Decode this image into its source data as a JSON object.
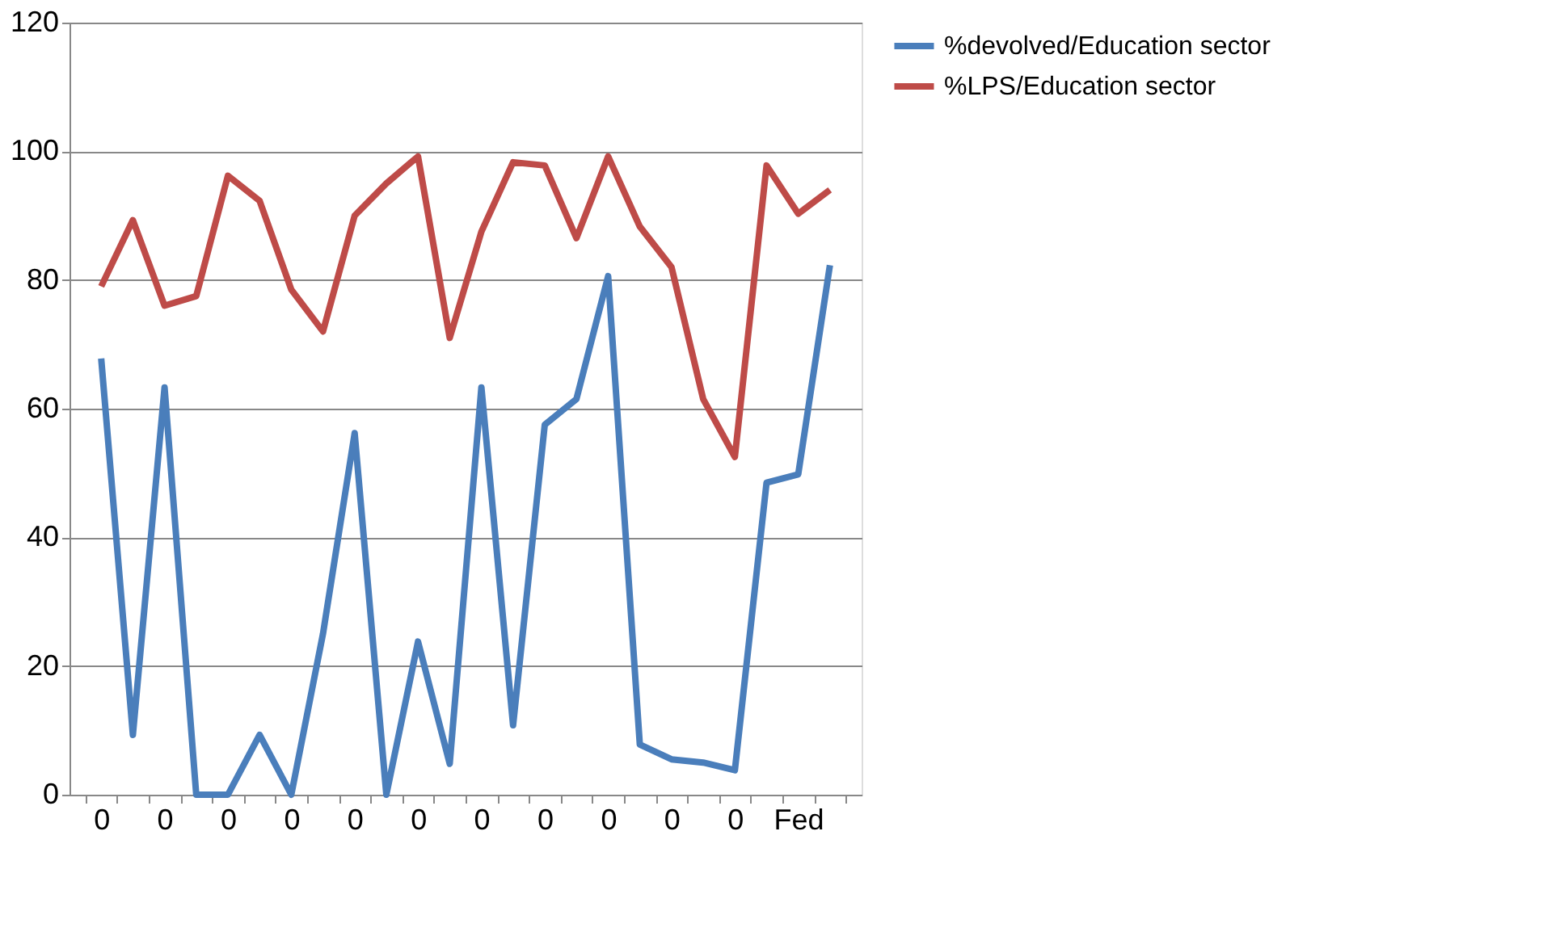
{
  "chart_data": {
    "type": "line",
    "categories": [
      "0",
      null,
      "0",
      null,
      "0",
      null,
      "0",
      null,
      "0",
      null,
      "0",
      null,
      "0",
      null,
      "0",
      null,
      "0",
      null,
      "0",
      null,
      "0",
      null,
      "Fed",
      null
    ],
    "series": [
      {
        "name": "%devolved/Education sector",
        "color": "#4a7ebb",
        "values": [
          67.8,
          9.3,
          63.3,
          0,
          0,
          9.3,
          0,
          25,
          56.2,
          0,
          23.8,
          4.8,
          63.3,
          10.8,
          57.5,
          61.5,
          80.6,
          7.8,
          5.5,
          5,
          3.8,
          48.5,
          49.8,
          82.3
        ]
      },
      {
        "name": "%LPS/Education sector",
        "color": "#be4b48",
        "values": [
          79,
          89.3,
          76,
          77.5,
          96.2,
          92.3,
          78.5,
          72,
          90,
          95,
          99.2,
          71,
          87.5,
          98.3,
          97.8,
          86.5,
          99.2,
          88.3,
          82,
          61.5,
          52.5,
          97.8,
          90.3,
          94
        ]
      }
    ],
    "ylim": [
      0,
      120
    ],
    "yticks": [
      0,
      20,
      40,
      60,
      80,
      100,
      120
    ],
    "grid": "y",
    "legend": "right",
    "line_style": "solid",
    "marker": "none"
  }
}
